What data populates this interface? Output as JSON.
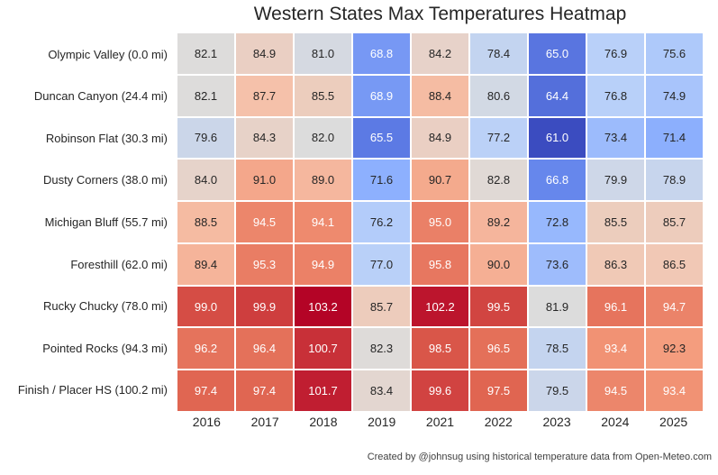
{
  "title": "Western States Max Temperatures Heatmap",
  "attribution": "Created by @johnsug using historical temperature data from Open-Meteo.com",
  "colors": {
    "background": "#ffffff",
    "grid_line": "#ffffff",
    "title_text": "#262626",
    "tick_text": "#262626",
    "attribution_text": "#404040"
  },
  "chart_data": {
    "type": "heatmap",
    "title": "Western States Max Temperatures Heatmap",
    "xlabel": "",
    "ylabel": "",
    "legend": "none",
    "grid": "white 2px separators between cells",
    "columns": [
      "2016",
      "2017",
      "2018",
      "2019",
      "2021",
      "2022",
      "2023",
      "2024",
      "2025"
    ],
    "rows": [
      "Olympic Valley (0.0 mi)",
      "Duncan Canyon (24.4 mi)",
      "Robinson Flat (30.3 mi)",
      "Dusty Corners (38.0 mi)",
      "Michigan Bluff (55.7 mi)",
      "Foresthill (62.0 mi)",
      "Rucky Chucky (78.0 mi)",
      "Pointed Rocks (94.3 mi)",
      "Finish / Placer HS (100.2 mi)"
    ],
    "values": [
      [
        82.1,
        84.9,
        81.0,
        68.8,
        84.2,
        78.4,
        65.0,
        76.9,
        75.6
      ],
      [
        82.1,
        87.7,
        85.5,
        68.9,
        88.4,
        80.6,
        64.4,
        76.8,
        74.9
      ],
      [
        79.6,
        84.3,
        82.0,
        65.5,
        84.9,
        77.2,
        61.0,
        73.4,
        71.4
      ],
      [
        84.0,
        91.0,
        89.0,
        71.6,
        90.7,
        82.8,
        66.8,
        79.9,
        78.9
      ],
      [
        88.5,
        94.5,
        94.1,
        76.2,
        95.0,
        89.2,
        72.8,
        85.5,
        85.7
      ],
      [
        89.4,
        95.3,
        94.9,
        77.0,
        95.8,
        90.0,
        73.6,
        86.3,
        86.5
      ],
      [
        99.0,
        99.9,
        103.2,
        85.7,
        102.2,
        99.5,
        81.9,
        96.1,
        94.7
      ],
      [
        96.2,
        96.4,
        100.7,
        82.3,
        98.5,
        96.5,
        78.5,
        93.4,
        92.3
      ],
      [
        97.4,
        97.4,
        101.7,
        83.4,
        99.6,
        97.5,
        79.5,
        94.5,
        93.4
      ]
    ],
    "value_decimals": 1,
    "vmin": 61.0,
    "vmax": 103.2,
    "colormap": {
      "name": "coolwarm",
      "stops": [
        "#3b4cc0",
        "#6282ea",
        "#8db0fe",
        "#b8d0f9",
        "#dddcdb",
        "#f5c4ad",
        "#f49a7b",
        "#de604d",
        "#b40426"
      ]
    },
    "annotation_colors": {
      "dark": "#262626",
      "light": "#ffffff"
    },
    "luminance_threshold": 0.408
  }
}
